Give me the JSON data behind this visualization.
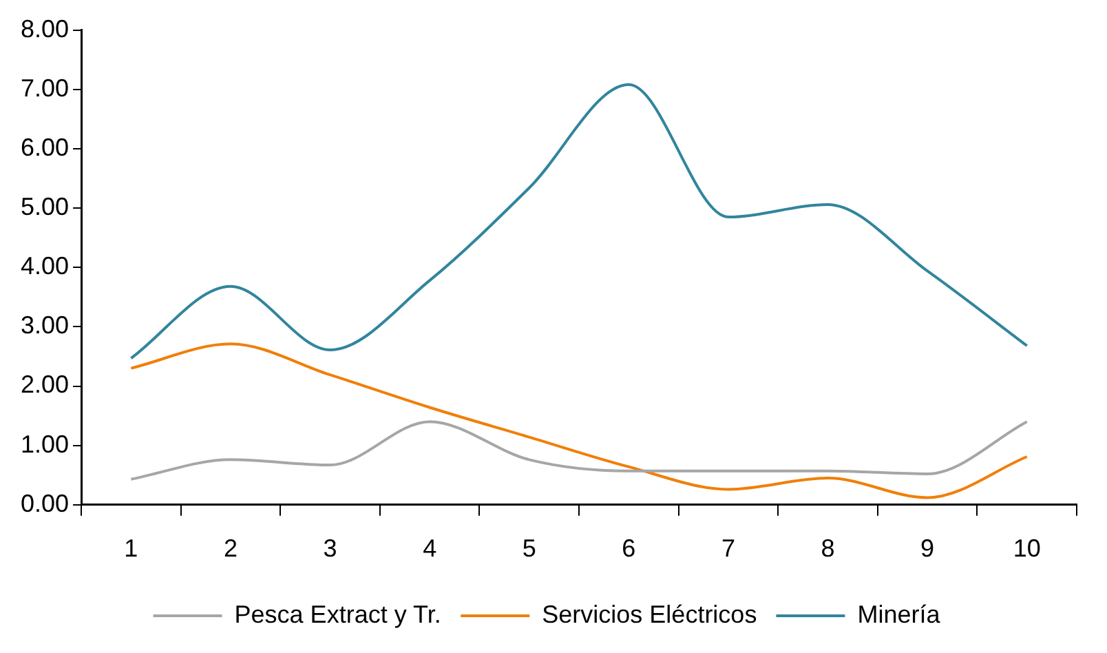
{
  "chart_data": {
    "type": "line",
    "categories": [
      "1",
      "2",
      "3",
      "4",
      "5",
      "6",
      "7",
      "8",
      "9",
      "10"
    ],
    "series": [
      {
        "name": "Pesca Extract y Tr.",
        "color": "#a6a6a6",
        "values": [
          0.43,
          0.76,
          0.67,
          1.4,
          0.76,
          0.57,
          0.57,
          0.57,
          0.52,
          1.4
        ]
      },
      {
        "name": "Servicios Eléctricos",
        "color": "#f07f09",
        "values": [
          2.3,
          2.71,
          2.19,
          1.64,
          1.14,
          0.64,
          0.26,
          0.45,
          0.12,
          0.81
        ]
      },
      {
        "name": "Minería",
        "color": "#31859c",
        "values": [
          2.47,
          3.68,
          2.61,
          3.78,
          5.34,
          7.08,
          4.85,
          5.06,
          3.94,
          2.68
        ]
      }
    ],
    "ylim": [
      0,
      8
    ],
    "yticks": [
      {
        "value": 0,
        "label": "0.00"
      },
      {
        "value": 1,
        "label": "1.00"
      },
      {
        "value": 2,
        "label": "2.00"
      },
      {
        "value": 3,
        "label": "3.00"
      },
      {
        "value": 4,
        "label": "4.00"
      },
      {
        "value": 5,
        "label": "5.00"
      },
      {
        "value": 6,
        "label": "6.00"
      },
      {
        "value": 7,
        "label": "7.00"
      },
      {
        "value": 8,
        "label": "8.00"
      }
    ],
    "grid": false,
    "legend": "bottom",
    "marker": "none",
    "line_style": "solid"
  }
}
